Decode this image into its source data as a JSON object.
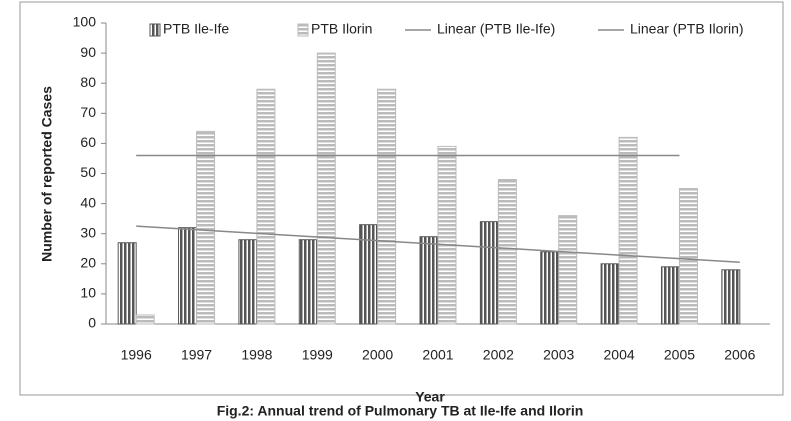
{
  "chart_data": {
    "type": "bar",
    "title": "Fig.2: Annual trend of Pulmonary TB at Ile-Ife and Ilorin",
    "x_label": "Year",
    "y_label": "Number of reported Cases",
    "categories": [
      "1996",
      "1997",
      "1998",
      "1999",
      "2000",
      "2001",
      "2002",
      "2003",
      "2004",
      "2005",
      "2006"
    ],
    "series": [
      {
        "name": "PTB Ile-Ife",
        "type": "bar",
        "color": "#555555",
        "values": [
          27,
          32,
          28,
          28,
          33,
          29,
          34,
          24,
          20,
          19,
          18
        ]
      },
      {
        "name": "PTB Ilorin",
        "type": "bar",
        "color": "#bbbbbb",
        "values": [
          3,
          64,
          78,
          90,
          78,
          59,
          48,
          36,
          62,
          45,
          null
        ]
      },
      {
        "name": "Linear (PTB Ile-Ife)",
        "type": "line",
        "color": "#888888",
        "values": [
          32.5,
          31.3,
          30.1,
          28.9,
          27.7,
          26.5,
          25.3,
          24.1,
          22.9,
          21.7,
          20.5
        ]
      },
      {
        "name": "Linear (PTB Ilorin)",
        "type": "line",
        "color": "#888888",
        "values": [
          56,
          56,
          56,
          56,
          56,
          56,
          56,
          56,
          56,
          56,
          null
        ]
      }
    ],
    "ylim": [
      0,
      100
    ],
    "yticks": [
      0,
      10,
      20,
      30,
      40,
      50,
      60,
      70,
      80,
      90,
      100
    ],
    "grid": false,
    "legend": "top"
  }
}
